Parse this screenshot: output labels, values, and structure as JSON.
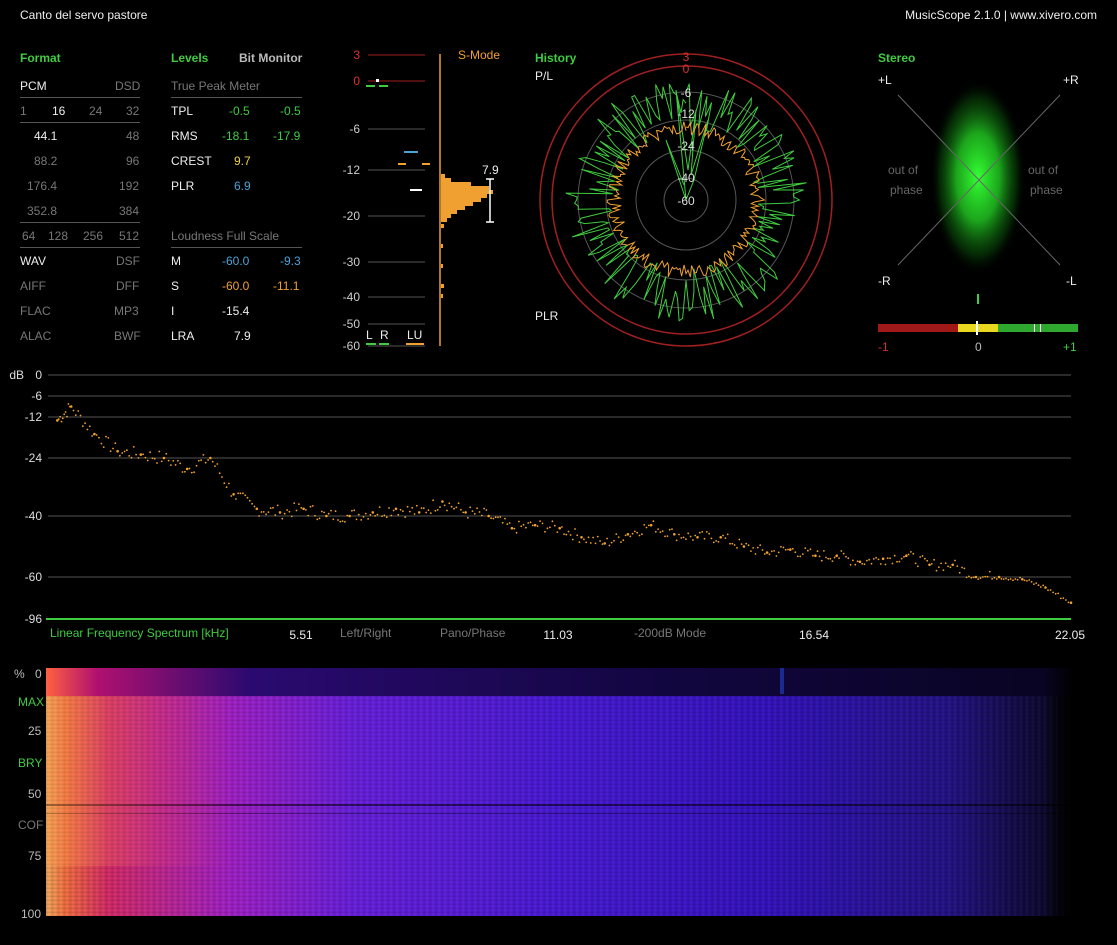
{
  "header": {
    "title": "Canto del servo pastore",
    "app": "MusicScope 2.1.0 | www.xivero.com"
  },
  "format": {
    "heading": "Format",
    "pcm": "PCM",
    "dsd": "DSD",
    "bits": [
      "1",
      "16",
      "24",
      "32"
    ],
    "rates": [
      [
        "44.1",
        "48"
      ],
      [
        "88.2",
        "96"
      ],
      [
        "176.4",
        "192"
      ],
      [
        "352.8",
        "384"
      ]
    ],
    "dsd_rates": [
      "64",
      "128",
      "256",
      "512"
    ],
    "containers": [
      [
        "WAV",
        "DSF"
      ],
      [
        "AIFF",
        "DFF"
      ],
      [
        "FLAC",
        "MP3"
      ],
      [
        "ALAC",
        "BWF"
      ]
    ]
  },
  "levels": {
    "heading": "Levels",
    "bit_monitor": "Bit Monitor",
    "tpm_label": "True Peak Meter",
    "rows": [
      {
        "label": "TPL",
        "l": "-0.5",
        "r": "-0.5"
      },
      {
        "label": "RMS",
        "l": "-18.1",
        "r": "-17.9"
      },
      {
        "label": "CREST",
        "l": "9.7",
        "r": ""
      },
      {
        "label": "PLR",
        "l": "6.9",
        "r": ""
      }
    ],
    "lfs_label": "Loudness Full Scale",
    "loud": [
      {
        "label": "M",
        "a": "-60.0",
        "b": "-9.3"
      },
      {
        "label": "S",
        "a": "-60.0",
        "b": "-11.1"
      },
      {
        "label": "I",
        "a": "-15.4",
        "b": ""
      },
      {
        "label": "LRA",
        "a": "7.9",
        "b": ""
      }
    ]
  },
  "meter": {
    "mode": "S-Mode",
    "scale": [
      "3",
      "0",
      "-6",
      "-12",
      "-20",
      "-30",
      "-40",
      "-50",
      "-60"
    ],
    "lra_value": "7.9",
    "channels": [
      "L",
      "R",
      "LU"
    ]
  },
  "history": {
    "heading": "History",
    "pl": "P/L",
    "plr": "PLR",
    "ring_labels": [
      "3",
      "0",
      "-6",
      "-12",
      "-24",
      "-40",
      "-60"
    ]
  },
  "stereo": {
    "heading": "Stereo",
    "pl": "+L",
    "pr": "+R",
    "mr": "-R",
    "ml": "-L",
    "oop": [
      "out of",
      "phase"
    ],
    "bar_labels": [
      "-1",
      "0",
      "+1"
    ]
  },
  "spectrum": {
    "db": "dB",
    "y_ticks": [
      "0",
      "-6",
      "-12",
      "-24",
      "-40",
      "-60",
      "-96"
    ],
    "x_label": "Linear Frequency Spectrum [kHz]",
    "x_ticks": [
      "5.51",
      "11.03",
      "16.54",
      "22.05"
    ],
    "modes": [
      "Left/Right",
      "Pano/Phase",
      "-200dB Mode"
    ]
  },
  "spectrogram": {
    "pct": "%",
    "ticks": [
      "0",
      "25",
      "50",
      "75",
      "100"
    ],
    "marks": [
      "MAX",
      "BRY",
      "COF"
    ]
  },
  "chart_data": {
    "type": "scatter",
    "title": "",
    "xlabel": "Linear Frequency Spectrum [kHz]",
    "ylabel": "dB",
    "xlim": [
      0,
      22.05
    ],
    "ylim": [
      -96,
      0
    ],
    "series": [
      {
        "x": [
          0.2,
          0.5,
          1.0,
          1.5,
          2.0,
          2.5,
          3.0,
          3.5,
          4.0,
          4.5,
          5.0,
          5.51,
          6.0,
          6.5,
          7.0,
          7.5,
          8.0,
          8.5,
          9.0,
          9.5,
          10.0,
          10.5,
          11.03,
          11.5,
          12.0,
          12.5,
          13.0,
          13.5,
          14.0,
          14.5,
          15.0,
          15.5,
          16.0,
          16.54,
          17.0,
          17.5,
          18.0,
          18.5,
          19.0,
          19.5,
          20.0,
          20.5,
          21.0,
          21.5,
          22.05
        ],
        "y": [
          -13,
          -9,
          -17,
          -22,
          -23,
          -24,
          -27,
          -24,
          -34,
          -38,
          -39,
          -38,
          -40,
          -40,
          -39,
          -38,
          -39,
          -36,
          -39,
          -40,
          -44,
          -43,
          -44,
          -47,
          -49,
          -46,
          -43,
          -46,
          -47,
          -47,
          -50,
          -52,
          -51,
          -53,
          -53,
          -55,
          -54,
          -53,
          -56,
          -56,
          -60,
          -60,
          -62,
          -69,
          -82
        ]
      }
    ]
  }
}
